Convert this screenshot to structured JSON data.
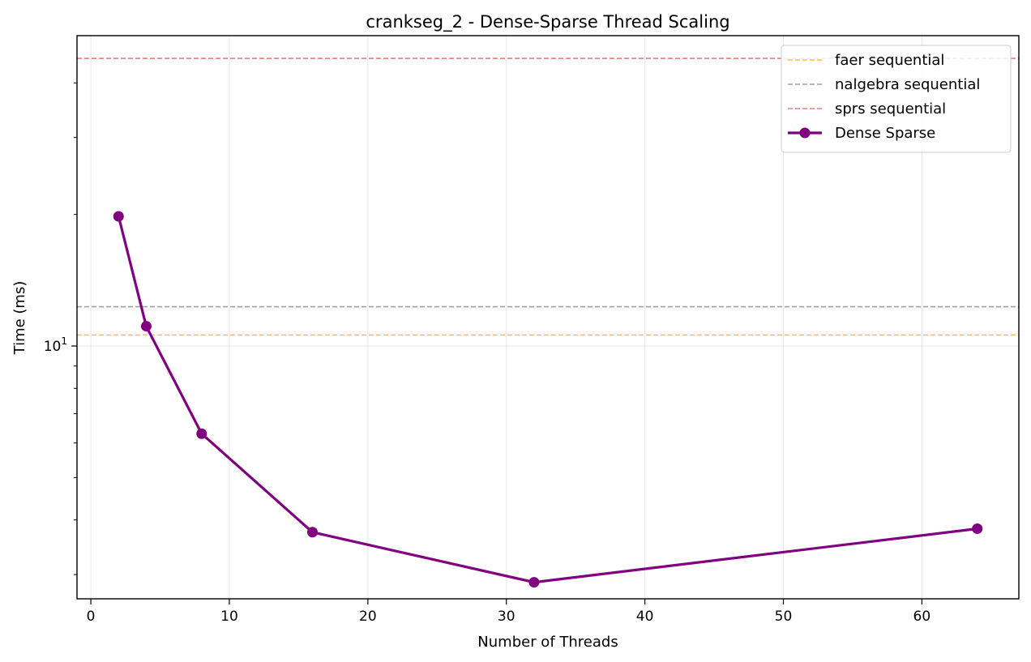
{
  "chart_data": {
    "type": "line",
    "title": "crankseg_2 - Dense-Sparse Thread Scaling",
    "xlabel": "Number of Threads",
    "ylabel": "Time (ms)",
    "xlim": [
      -1,
      67
    ],
    "xticks": [
      0,
      10,
      20,
      30,
      40,
      50,
      60
    ],
    "yscale": "log",
    "ylim": [
      2.64,
      51.3
    ],
    "yticks": [
      {
        "value": 10,
        "base": "10",
        "exp": "1"
      }
    ],
    "yminor": [
      3,
      4,
      5,
      6,
      7,
      8,
      9,
      20,
      30,
      40
    ],
    "grid": true,
    "legend_position": "top-right",
    "reference_lines": [
      {
        "name": "faer sequential",
        "y": 10.6,
        "color": "#FFA500"
      },
      {
        "name": "nalgebra sequential",
        "y": 12.3,
        "color": "#808080"
      },
      {
        "name": "sprs sequential",
        "y": 45.5,
        "color": "#CD5C5C"
      }
    ],
    "series": [
      {
        "name": "Dense Sparse",
        "color": "#800080",
        "x": [
          2,
          4,
          8,
          16,
          32,
          64
        ],
        "y": [
          19.8,
          11.1,
          6.3,
          3.75,
          2.88,
          3.82
        ]
      }
    ]
  }
}
